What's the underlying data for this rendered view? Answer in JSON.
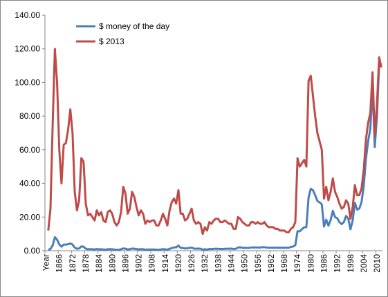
{
  "chart_data": {
    "type": "line",
    "categories": [
      "Year",
      null,
      null,
      null,
      null,
      null,
      1866,
      null,
      null,
      null,
      null,
      null,
      1872,
      null,
      null,
      null,
      null,
      null,
      1878,
      null,
      null,
      null,
      null,
      null,
      1884,
      null,
      null,
      null,
      null,
      null,
      1890,
      null,
      null,
      null,
      null,
      null,
      1896,
      null,
      null,
      null,
      null,
      null,
      1902,
      null,
      null,
      null,
      null,
      null,
      1908,
      null,
      null,
      null,
      null,
      null,
      1914,
      null,
      null,
      null,
      null,
      null,
      1920,
      null,
      null,
      null,
      null,
      null,
      1926,
      null,
      null,
      null,
      null,
      null,
      1932,
      null,
      null,
      null,
      null,
      null,
      1938,
      null,
      null,
      null,
      null,
      null,
      1944,
      null,
      null,
      null,
      null,
      null,
      1950,
      null,
      null,
      null,
      null,
      null,
      1956,
      null,
      null,
      null,
      null,
      null,
      1962,
      null,
      null,
      null,
      null,
      null,
      1968,
      null,
      null,
      null,
      null,
      null,
      1974,
      null,
      null,
      null,
      null,
      null,
      1980,
      null,
      null,
      null,
      null,
      null,
      1986,
      null,
      null,
      null,
      null,
      null,
      1992,
      null,
      null,
      null,
      null,
      null,
      1998,
      null,
      null,
      null,
      null,
      null,
      2004,
      null,
      null,
      null,
      null,
      null,
      2010,
      null,
      null
    ],
    "series": [
      {
        "name": "$ money of the day",
        "color": "#4a7ebb",
        "values": [
          null,
          0.49,
          1.05,
          3.15,
          8.06,
          6.59,
          3.74,
          2.41,
          3.63,
          3.64,
          3.86,
          4.34,
          3.64,
          1.83,
          1.17,
          1.35,
          2.56,
          2.42,
          1.19,
          0.86,
          0.95,
          0.86,
          0.78,
          1.0,
          0.84,
          0.88,
          0.71,
          0.67,
          0.88,
          0.94,
          0.87,
          0.67,
          0.56,
          0.64,
          0.84,
          1.36,
          1.18,
          0.79,
          0.91,
          1.29,
          1.19,
          0.96,
          0.8,
          0.94,
          0.86,
          0.62,
          0.73,
          0.72,
          0.72,
          0.7,
          0.61,
          0.61,
          0.74,
          0.95,
          0.81,
          0.64,
          1.1,
          1.56,
          1.98,
          2.01,
          3.07,
          1.73,
          1.61,
          1.34,
          1.43,
          1.68,
          1.88,
          1.3,
          1.17,
          1.27,
          1.19,
          0.65,
          0.87,
          0.67,
          1.0,
          0.97,
          1.09,
          1.18,
          1.13,
          1.02,
          1.02,
          1.14,
          1.19,
          1.2,
          1.21,
          1.05,
          1.12,
          1.9,
          1.99,
          1.78,
          1.71,
          1.71,
          1.71,
          1.93,
          1.93,
          1.93,
          1.93,
          1.9,
          2.08,
          2.08,
          1.9,
          1.8,
          1.8,
          1.8,
          1.8,
          1.8,
          1.8,
          1.8,
          1.8,
          1.8,
          1.8,
          2.24,
          2.48,
          3.29,
          11.58,
          11.53,
          12.8,
          13.92,
          14.02,
          31.61,
          36.83,
          35.93,
          32.97,
          29.55,
          28.78,
          27.56,
          14.43,
          18.44,
          14.92,
          18.23,
          23.73,
          20.0,
          19.32,
          16.97,
          15.82,
          17.02,
          20.67,
          19.09,
          12.72,
          17.97,
          28.5,
          24.44,
          25.02,
          28.83,
          38.27,
          54.52,
          65.14,
          72.39,
          97.26,
          61.67,
          79.5,
          111.26,
          111.67
        ]
      },
      {
        "name": "$ 2013",
        "color": "#be4b48",
        "values": [
          null,
          12,
          25,
          75,
          120,
          100,
          60,
          40,
          63,
          64,
          72,
          84,
          70,
          35,
          24,
          30,
          55,
          53,
          28,
          21,
          22,
          20,
          18,
          24,
          21,
          23,
          18,
          17,
          23,
          24,
          22,
          17,
          15,
          17,
          23,
          38,
          34,
          22,
          25,
          35,
          32,
          26,
          21,
          24,
          22,
          16,
          18,
          17,
          18,
          18,
          15,
          15,
          18,
          22,
          19,
          15,
          24,
          29,
          31,
          28,
          36,
          22,
          22,
          18,
          19,
          22,
          25,
          18,
          16,
          17,
          16,
          10,
          14,
          12,
          17,
          16,
          18,
          19,
          19,
          17,
          17,
          18,
          17,
          16,
          16,
          13,
          13,
          20,
          19,
          17,
          16,
          15,
          15,
          17,
          17,
          16,
          17,
          16,
          16,
          17,
          15,
          14,
          14,
          14,
          13,
          13,
          12,
          12,
          12,
          11,
          11,
          13,
          14,
          17,
          55,
          50,
          52,
          54,
          50,
          101,
          104,
          92,
          80,
          70,
          65,
          60,
          31,
          38,
          30,
          35,
          43,
          35,
          32,
          28,
          25,
          26,
          30,
          28,
          19,
          26,
          39,
          33,
          33,
          37,
          48,
          66,
          76,
          82,
          106,
          68,
          87,
          115,
          109
        ]
      }
    ],
    "ylim": [
      0,
      140
    ],
    "yticks": [
      {
        "value": 0,
        "label": "0.00"
      },
      {
        "value": 20,
        "label": "20.00"
      },
      {
        "value": 40,
        "label": "40.00"
      },
      {
        "value": 60,
        "label": "60.00"
      },
      {
        "value": 80,
        "label": "80.00"
      },
      {
        "value": 100,
        "label": "100.00"
      },
      {
        "value": 120,
        "label": "120.00"
      },
      {
        "value": 140,
        "label": "140.00"
      }
    ],
    "legend": "top-left",
    "grid": false
  }
}
